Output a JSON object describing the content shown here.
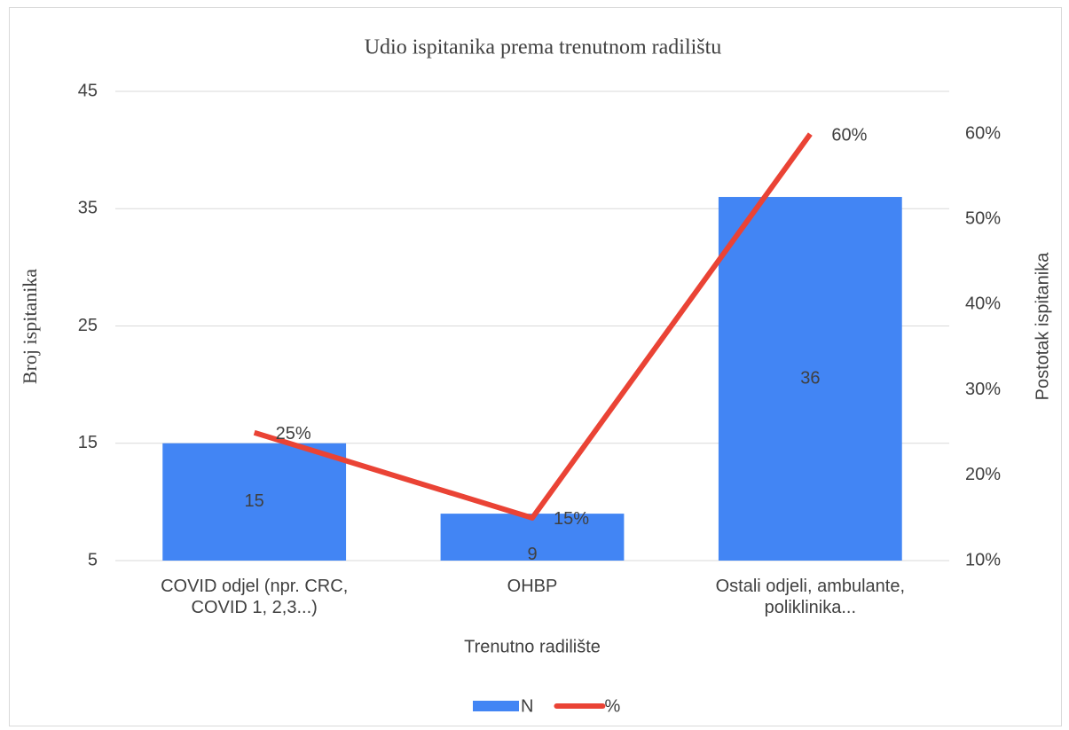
{
  "chart_data": {
    "type": "bar+line",
    "title": "Udio ispitanika prema trenutnom radilištu",
    "x_label": "Trenutno radilište",
    "y_label": "Broj ispitanika",
    "y2_label": "Postotak ispitanika",
    "categories": [
      "COVID odjel (npr. CRC, COVID 1, 2,3...)",
      "OHBP",
      "Ostali odjeli, ambulante, poliklinika..."
    ],
    "series": [
      {
        "name": "N",
        "type": "bar",
        "color": "#4285f4",
        "values": [
          15,
          9,
          36
        ]
      },
      {
        "name": "%",
        "type": "line",
        "color": "#ea4335",
        "axis": "y2",
        "values": [
          25,
          15,
          60
        ],
        "value_labels": [
          "25%",
          "15%",
          "60%"
        ]
      }
    ],
    "ylim": [
      5,
      45
    ],
    "yticks": [
      5,
      15,
      25,
      35,
      45
    ],
    "y2lim": [
      10,
      65
    ],
    "y2ticks": [
      {
        "value": 10,
        "label": "10%"
      },
      {
        "value": 20,
        "label": "20%"
      },
      {
        "value": 30,
        "label": "30%"
      },
      {
        "value": 40,
        "label": "40%"
      },
      {
        "value": 50,
        "label": "50%"
      },
      {
        "value": 60,
        "label": "60%"
      }
    ],
    "grid": true,
    "legend": "bottom"
  }
}
